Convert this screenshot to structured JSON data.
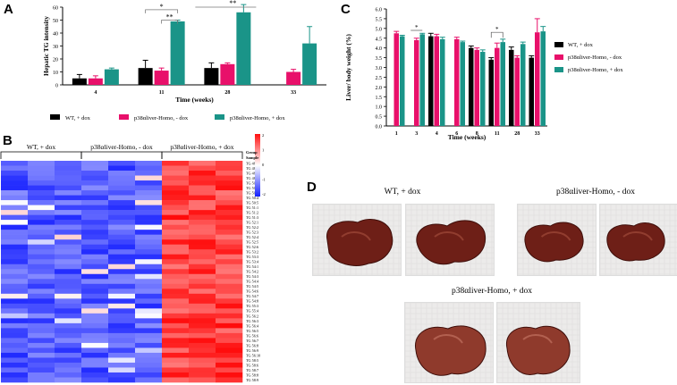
{
  "panels": {
    "a": {
      "letter": "A"
    },
    "b": {
      "letter": "B"
    },
    "c": {
      "letter": "C"
    },
    "d": {
      "letter": "D"
    }
  },
  "colors": {
    "wt": "#000000",
    "minus": "#e8106a",
    "plus": "#1a9488"
  },
  "chart_data": [
    {
      "id": "A",
      "type": "bar",
      "title": "",
      "xlabel": "Time (weeks)",
      "ylabel": "Hepatic TG intensity",
      "categories": [
        "4",
        "11",
        "28",
        "33"
      ],
      "ylim": [
        0,
        60
      ],
      "yticks": [
        0,
        10,
        20,
        30,
        40,
        50,
        60
      ],
      "series": [
        {
          "name": "WT, + dox",
          "color": "#000000",
          "values": [
            5,
            13,
            13,
            null
          ],
          "errors": [
            3,
            6,
            4,
            null
          ]
        },
        {
          "name": "p38αliver-Homo, - dox",
          "color": "#e8106a",
          "values": [
            5,
            11,
            16,
            10
          ],
          "errors": [
            2,
            2,
            1,
            2
          ]
        },
        {
          "name": "p38αliver-Homo, + dox",
          "color": "#1a9488",
          "values": [
            12,
            49,
            56,
            32
          ],
          "errors": [
            1,
            1,
            6,
            13
          ]
        }
      ],
      "annotations": [
        "*",
        "**",
        "**"
      ],
      "legend_position": "bottom"
    },
    {
      "id": "C",
      "type": "bar",
      "title": "",
      "xlabel": "Time (weeks)",
      "ylabel": "Liver/ body weight (%)",
      "categories": [
        "1",
        "3",
        "4",
        "6",
        "8",
        "11",
        "28",
        "33"
      ],
      "ylim": [
        0,
        6.0
      ],
      "yticks": [
        "0.0",
        "0.5",
        "1.0",
        "1.5",
        "2.0",
        "2.5",
        "3.0",
        "3.5",
        "4.0",
        "4.5",
        "5.0",
        "5.5",
        "6.0"
      ],
      "series": [
        {
          "name": "WT, + dox",
          "color": "#000000",
          "values": [
            null,
            null,
            4.6,
            null,
            4.0,
            3.4,
            3.9,
            3.5
          ],
          "errors": [
            null,
            null,
            0.15,
            null,
            0.1,
            0.1,
            0.15,
            0.1
          ]
        },
        {
          "name": "p38αliver-Homo, - dox",
          "color": "#e8106a",
          "values": [
            4.75,
            4.4,
            4.6,
            4.45,
            3.9,
            4.0,
            3.5,
            4.8
          ],
          "errors": [
            0.1,
            0.1,
            0.1,
            0.1,
            0.1,
            0.25,
            0.1,
            0.7
          ]
        },
        {
          "name": "p38αliver-Homo, + dox",
          "color": "#1a9488",
          "values": [
            4.6,
            4.7,
            4.45,
            4.3,
            3.8,
            4.3,
            4.2,
            4.85
          ],
          "errors": [
            0.05,
            0.05,
            0.1,
            0.05,
            0.1,
            0.15,
            0.1,
            0.25
          ]
        }
      ],
      "annotations": [
        "*",
        "*"
      ],
      "legend_position": "right"
    },
    {
      "id": "B",
      "type": "heatmap",
      "title": "",
      "group_labels": [
        "WT, + dox",
        "p38αliver-Homo, - dox",
        "p38αliver-Homo, + dox"
      ],
      "columns_per_group": 3,
      "legend_header": [
        "Group",
        "Sample"
      ],
      "colorbar_ticks": [
        "2",
        "1",
        "0",
        "-1",
        "-2"
      ],
      "row_labels": [
        "TG 48:0",
        "TG 48:1",
        "TG 48:2",
        "TG 48:3",
        "TG 50:1",
        "TG 50:2",
        "TG 50:3",
        "TG 50:4",
        "TG 50:5",
        "TG 51:1",
        "TG 51:2",
        "TG 51:3",
        "TG 52:1",
        "TG 52:2",
        "TG 52:3",
        "TG 52:4",
        "TG 52:5",
        "TG 52:6",
        "TG 53:2",
        "TG 53:3",
        "TG 53:4",
        "TG 54:1",
        "TG 54:2",
        "TG 54:3",
        "TG 54:4",
        "TG 54:5",
        "TG 54:6",
        "TG 54:7",
        "TG 54:8",
        "TG 55:3",
        "TG 55:4",
        "TG 56:2",
        "TG 56:3",
        "TG 56:4",
        "TG 56:5",
        "TG 56:6",
        "TG 56:7",
        "TG 56:8",
        "TG 56:9",
        "TG 56:10",
        "TG 58:5",
        "TG 58:6",
        "TG 58:7",
        "TG 58:8",
        "TG 58:9"
      ]
    }
  ],
  "photos": {
    "wt_label": "WT, + dox",
    "minus_label": "p38αliver-Homo, - dox",
    "plus_label": "p38αliver-Homo, + dox"
  }
}
